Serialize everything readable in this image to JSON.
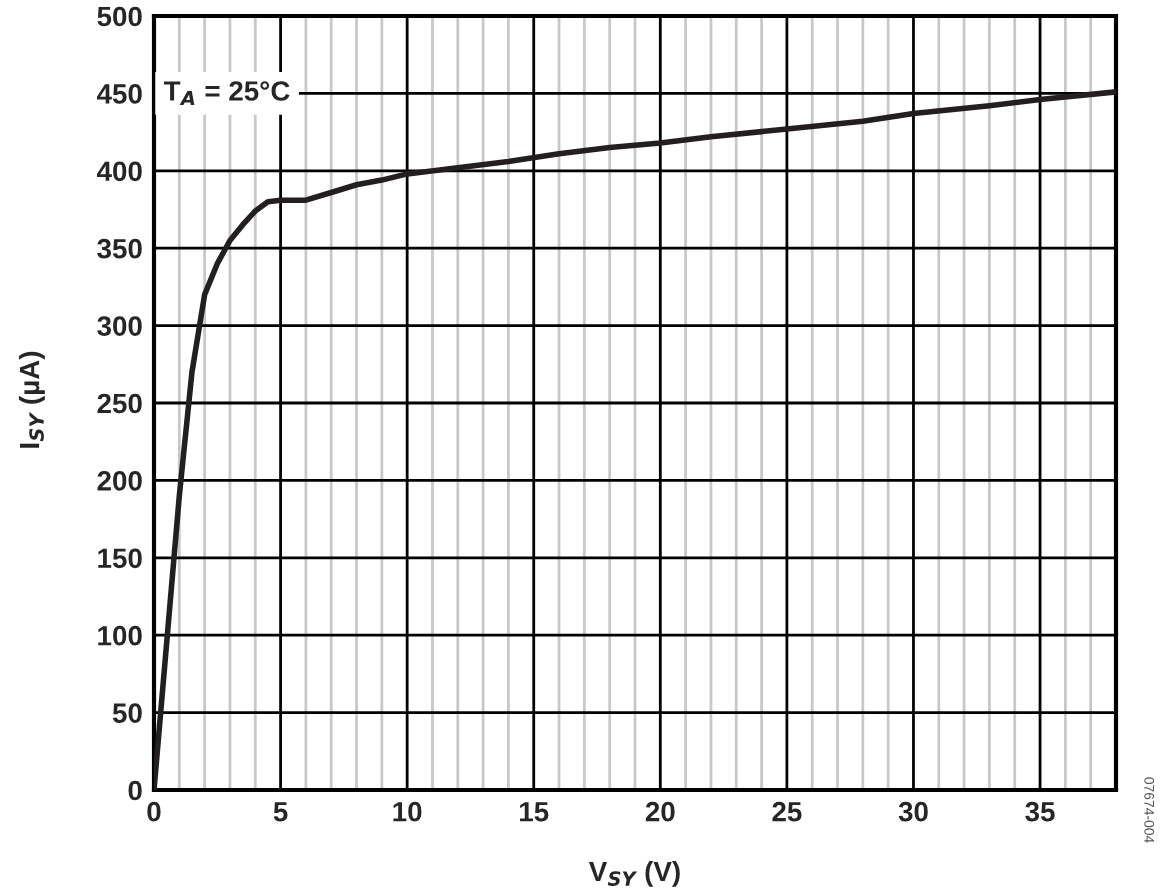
{
  "chart_data": {
    "type": "line",
    "xlabel": "V$_{SY}$ (V)",
    "ylabel": "I$_{SY}$ (µA)",
    "annotations": [
      "T$_{A}$ = 25°C",
      "07674-004"
    ],
    "x": [
      0,
      0.5,
      1,
      1.5,
      2,
      2.5,
      3,
      3.5,
      4,
      4.5,
      5,
      6,
      7,
      8,
      9,
      10,
      12,
      14,
      16,
      18,
      20,
      22,
      25,
      28,
      30,
      33,
      35,
      38
    ],
    "series": [
      {
        "color": "#231f20",
        "values": [
          0,
          95,
          190,
          270,
          320,
          340,
          355,
          365,
          374,
          380,
          381,
          381,
          386,
          391,
          394,
          398,
          402,
          406,
          411,
          415,
          418,
          422,
          427,
          432,
          437,
          442,
          446,
          451
        ]
      }
    ],
    "xlim": [
      0,
      38
    ],
    "xticks": [
      0,
      5,
      10,
      15,
      20,
      25,
      30,
      35
    ],
    "ylim": [
      0,
      500
    ],
    "yticks": [
      0,
      50,
      100,
      150,
      200,
      250,
      300,
      350,
      400,
      450,
      500
    ],
    "grid": true,
    "legend": false,
    "marker": "none",
    "line_style": "solid"
  }
}
